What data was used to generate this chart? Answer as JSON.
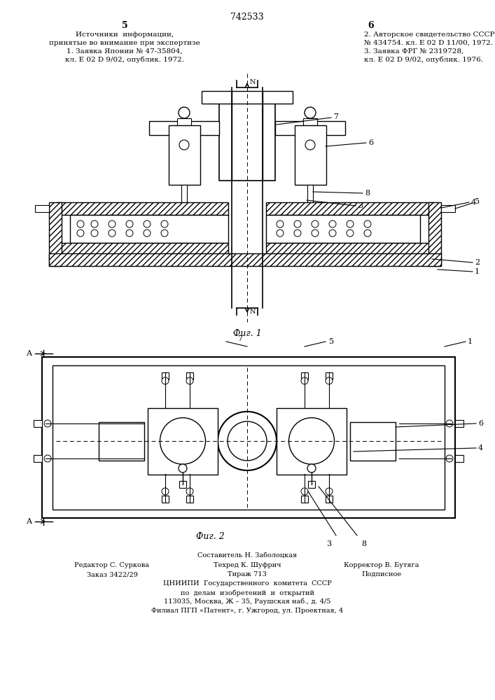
{
  "patent_number": "742533",
  "page_left": "5",
  "page_right": "6",
  "references_title": "Источники  информации,",
  "references_subtitle": "принятые во внимание при экспертизе",
  "ref1": "1. Заявка Японии № 47-35804,",
  "ref1b": "кл. Е 02 D 9/02, опублик. 1972.",
  "ref2": "2. Авторское свидетельство СССР",
  "ref2b": "№ 434754. кл. Е 02 D 11/00, 1972.",
  "ref3": "3. Заявка ФРГ № 2319728,",
  "ref3b": "кл. Е 02 D 9/02, опублик. 1976.",
  "fig1_label": "Фиг. 1",
  "fig2_label": "Фиг. 2",
  "footer_line1": "Составитель Н. Заболоцкая",
  "footer_line2a": "Редактор С. Суркова",
  "footer_line2b": "Техред К. Шуфрич",
  "footer_line2c": "Корректор В. Бутяга",
  "footer_line3a": "Заказ 3422/29",
  "footer_line3b": "Тираж 713",
  "footer_line3c": "Подписное",
  "footer_line4": "ЦНИИПИ  Государственного  комитета  СССР",
  "footer_line5": "по  делам  изобретений  и  открытий",
  "footer_line6": "113035, Москва, Ж – 35, Раушская наб., д. 4/5",
  "footer_line7": "Филиал ПГП «Патент», г. Ужгород, ул. Проектная, 4",
  "bg_color": "#ffffff",
  "line_color": "#000000"
}
